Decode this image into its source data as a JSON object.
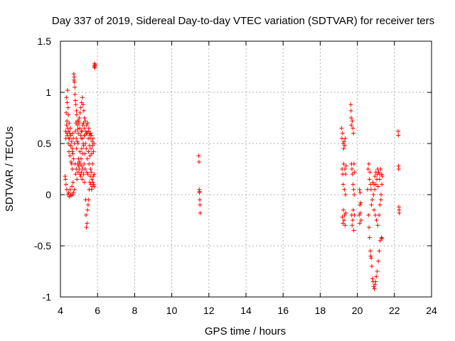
{
  "chart_data": {
    "type": "scatter",
    "title": "Day 337 of 2019, Sidereal Day-to-day VTEC variation (SDTVAR) for receiver ters",
    "xlabel": "GPS time / hours",
    "ylabel": "SDTVAR / TECUs",
    "xlim": [
      4,
      24
    ],
    "ylim": [
      -1,
      1.5
    ],
    "xticks": [
      4,
      6,
      8,
      10,
      12,
      14,
      16,
      18,
      20,
      22,
      24
    ],
    "yticks": [
      -1,
      -0.5,
      0,
      0.5,
      1,
      1.5
    ],
    "xtick_labels": [
      "4",
      "6",
      "8",
      "10",
      "12",
      "14",
      "16",
      "18",
      "20",
      "22",
      "24"
    ],
    "ytick_labels": [
      "-1",
      "-0.5",
      "0",
      "0.5",
      "1",
      "1.5"
    ],
    "grid": true,
    "marker": "+",
    "color": "#ff0000",
    "series": [
      {
        "name": "SDTVAR",
        "points": [
          [
            4.25,
            0.18
          ],
          [
            4.27,
            0.15
          ],
          [
            4.28,
            0.62
          ],
          [
            4.29,
            0.55
          ],
          [
            4.3,
            0.1
          ],
          [
            4.31,
            0.8
          ],
          [
            4.32,
            0.95
          ],
          [
            4.33,
            0.68
          ],
          [
            4.34,
            0.05
          ],
          [
            4.35,
            0.72
          ],
          [
            4.36,
            0.9
          ],
          [
            4.37,
            0.58
          ],
          [
            4.38,
            1.02
          ],
          [
            4.39,
            0.65
          ],
          [
            4.4,
            0.0
          ],
          [
            4.41,
            0.85
          ],
          [
            4.42,
            0.5
          ],
          [
            4.43,
            0.78
          ],
          [
            4.44,
            0.02
          ],
          [
            4.45,
            0.62
          ],
          [
            4.46,
            0.42
          ],
          [
            4.47,
            0.7
          ],
          [
            4.48,
            -0.02
          ],
          [
            4.49,
            0.55
          ],
          [
            4.5,
            0.6
          ],
          [
            4.51,
            0.38
          ],
          [
            4.52,
            0.05
          ],
          [
            4.53,
            0.65
          ],
          [
            4.54,
            0.48
          ],
          [
            4.55,
            0.0
          ],
          [
            4.56,
            0.58
          ],
          [
            4.57,
            0.32
          ],
          [
            4.58,
            -0.01
          ],
          [
            4.6,
            0.52
          ],
          [
            4.61,
            0.3
          ],
          [
            4.62,
            0.08
          ],
          [
            4.63,
            0.45
          ],
          [
            4.64,
            0.25
          ],
          [
            4.65,
            0.0
          ],
          [
            4.66,
            0.6
          ],
          [
            4.67,
            0.4
          ],
          [
            4.68,
            0.12
          ],
          [
            4.69,
            0.55
          ],
          [
            4.7,
            0.02
          ],
          [
            4.71,
            0.35
          ],
          [
            4.72,
            1.18
          ],
          [
            4.73,
            1.12
          ],
          [
            4.74,
            1.15
          ],
          [
            4.75,
            1.1
          ],
          [
            4.76,
            0.05
          ],
          [
            4.77,
            1.05
          ],
          [
            4.78,
            0.98
          ],
          [
            4.79,
            0.3
          ],
          [
            4.8,
            0.92
          ],
          [
            4.81,
            0.62
          ],
          [
            4.82,
            0.2
          ],
          [
            4.83,
            0.88
          ],
          [
            4.84,
            0.7
          ],
          [
            4.85,
            0.25
          ],
          [
            4.86,
            0.82
          ],
          [
            4.87,
            0.45
          ],
          [
            4.88,
            0.78
          ],
          [
            4.89,
            0.15
          ],
          [
            4.9,
            0.72
          ],
          [
            4.91,
            0.52
          ],
          [
            4.92,
            0.68
          ],
          [
            4.93,
            0.3
          ],
          [
            4.94,
            0.64
          ],
          [
            4.95,
            0.22
          ],
          [
            4.96,
            0.6
          ],
          [
            4.97,
            0.35
          ],
          [
            4.98,
            0.72
          ],
          [
            4.99,
            0.28
          ],
          [
            5.0,
            0.7
          ],
          [
            5.01,
            0.32
          ],
          [
            5.02,
            0.75
          ],
          [
            5.03,
            0.25
          ],
          [
            5.04,
            0.65
          ],
          [
            5.05,
            0.2
          ],
          [
            5.06,
            0.8
          ],
          [
            5.07,
            0.3
          ],
          [
            5.08,
            0.58
          ],
          [
            5.09,
            0.18
          ],
          [
            5.1,
            0.85
          ],
          [
            5.11,
            0.35
          ],
          [
            5.12,
            0.55
          ],
          [
            5.13,
            0.22
          ],
          [
            5.14,
            0.9
          ],
          [
            5.15,
            0.28
          ],
          [
            5.16,
            0.62
          ],
          [
            5.17,
            0.15
          ],
          [
            5.18,
            0.95
          ],
          [
            5.19,
            0.4
          ],
          [
            5.2,
            0.68
          ],
          [
            5.21,
            0.25
          ],
          [
            5.22,
            0.88
          ],
          [
            5.23,
            0.5
          ],
          [
            5.24,
            0.7
          ],
          [
            5.25,
            0.2
          ],
          [
            5.26,
            0.82
          ],
          [
            5.27,
            0.3
          ],
          [
            5.28,
            0.65
          ],
          [
            5.29,
            0.12
          ],
          [
            5.3,
            0.75
          ],
          [
            5.31,
            0.4
          ],
          [
            5.32,
            0.58
          ],
          [
            5.33,
            0.25
          ],
          [
            5.34,
            0.72
          ],
          [
            5.35,
            0.5
          ],
          [
            5.36,
            -0.05
          ],
          [
            5.37,
            0.62
          ],
          [
            5.38,
            -0.2
          ],
          [
            5.39,
            0.45
          ],
          [
            5.4,
            -0.32
          ],
          [
            5.41,
            0.68
          ],
          [
            5.42,
            0.22
          ],
          [
            5.43,
            -0.28
          ],
          [
            5.44,
            0.6
          ],
          [
            5.45,
            0.35
          ],
          [
            5.46,
            -0.15
          ],
          [
            5.47,
            0.7
          ],
          [
            5.48,
            0.2
          ],
          [
            5.49,
            -0.1
          ],
          [
            5.5,
            0.55
          ],
          [
            5.51,
            0.42
          ],
          [
            5.52,
            -0.05
          ],
          [
            5.53,
            0.65
          ],
          [
            5.54,
            0.3
          ],
          [
            5.55,
            0.05
          ],
          [
            5.56,
            0.6
          ],
          [
            5.57,
            0.48
          ],
          [
            5.58,
            0.12
          ],
          [
            5.59,
            0.38
          ],
          [
            5.6,
            0.55
          ],
          [
            5.61,
            0.18
          ],
          [
            5.62,
            0.25
          ],
          [
            5.63,
            0.6
          ],
          [
            5.64,
            0.1
          ],
          [
            5.65,
            0.45
          ],
          [
            5.66,
            0.22
          ],
          [
            5.67,
            0.58
          ],
          [
            5.68,
            0.05
          ],
          [
            5.69,
            0.4
          ],
          [
            5.7,
            0.15
          ],
          [
            5.71,
            0.52
          ],
          [
            5.72,
            0.08
          ],
          [
            5.73,
            0.3
          ],
          [
            5.74,
            0.48
          ],
          [
            5.75,
            0.12
          ],
          [
            5.76,
            0.55
          ],
          [
            5.77,
            0.18
          ],
          [
            5.78,
            0.42
          ],
          [
            5.79,
            0.1
          ],
          [
            5.8,
            0.5
          ],
          [
            5.81,
            0.2
          ],
          [
            5.82,
            0.08
          ],
          [
            5.83,
            1.25
          ],
          [
            5.84,
            1.28
          ],
          [
            5.85,
            1.26
          ],
          [
            5.86,
            1.24
          ],
          [
            5.87,
            1.27
          ],
          [
            5.12,
            0.62
          ],
          [
            5.2,
            0.55
          ],
          [
            5.3,
            0.58
          ],
          [
            5.4,
            0.6
          ],
          [
            5.5,
            0.62
          ],
          [
            5.6,
            0.58
          ],
          [
            5.05,
            0.42
          ],
          [
            5.15,
            0.45
          ],
          [
            5.25,
            0.48
          ],
          [
            4.35,
            0.6
          ],
          [
            4.45,
            0.55
          ],
          [
            4.55,
            0.48
          ],
          [
            4.65,
            0.42
          ],
          [
            4.75,
            0.5
          ],
          [
            4.85,
            0.55
          ],
          [
            4.95,
            0.5
          ],
          [
            11.45,
            0.38
          ],
          [
            11.47,
            0.32
          ],
          [
            11.48,
            0.05
          ],
          [
            11.5,
            0.03
          ],
          [
            11.51,
            -0.05
          ],
          [
            11.52,
            -0.1
          ],
          [
            11.53,
            -0.18
          ],
          [
            11.49,
            0.02
          ],
          [
            19.15,
            0.65
          ],
          [
            19.17,
            0.55
          ],
          [
            19.18,
            0.25
          ],
          [
            19.19,
            -0.22
          ],
          [
            19.2,
            0.6
          ],
          [
            19.21,
            0.2
          ],
          [
            19.22,
            -0.28
          ],
          [
            19.23,
            0.5
          ],
          [
            19.24,
            0.1
          ],
          [
            19.25,
            -0.15
          ],
          [
            19.26,
            0.45
          ],
          [
            19.27,
            0.3
          ],
          [
            19.28,
            -0.25
          ],
          [
            19.29,
            0.52
          ],
          [
            19.3,
            0.05
          ],
          [
            19.31,
            -0.2
          ],
          [
            19.32,
            0.48
          ],
          [
            19.33,
            0.25
          ],
          [
            19.34,
            -0.3
          ],
          [
            19.35,
            0.55
          ],
          [
            19.36,
            0.0
          ],
          [
            19.37,
            0.2
          ],
          [
            19.38,
            -0.18
          ],
          [
            19.4,
            0.28
          ],
          [
            19.65,
            0.88
          ],
          [
            19.66,
            0.82
          ],
          [
            19.67,
            0.75
          ],
          [
            19.68,
            0.68
          ],
          [
            19.69,
            0.3
          ],
          [
            19.7,
            -0.2
          ],
          [
            19.71,
            0.25
          ],
          [
            19.72,
            -0.3
          ],
          [
            19.73,
            0.72
          ],
          [
            19.74,
            0.2
          ],
          [
            19.75,
            -0.25
          ],
          [
            19.76,
            0.65
          ],
          [
            19.77,
            0.1
          ],
          [
            19.78,
            -0.15
          ],
          [
            19.79,
            0.6
          ],
          [
            19.8,
            0.05
          ],
          [
            19.81,
            -0.35
          ],
          [
            19.82,
            0.3
          ],
          [
            19.83,
            0.0
          ],
          [
            19.84,
            -0.2
          ],
          [
            19.85,
            0.22
          ],
          [
            20.1,
            -0.2
          ],
          [
            20.12,
            0.05
          ],
          [
            20.13,
            -0.28
          ],
          [
            20.14,
            -0.1
          ],
          [
            20.15,
            0.02
          ],
          [
            20.16,
            -0.18
          ],
          [
            20.18,
            -0.08
          ],
          [
            20.2,
            -0.25
          ],
          [
            20.55,
            0.05
          ],
          [
            20.58,
            0.25
          ],
          [
            20.6,
            -0.2
          ],
          [
            20.62,
            0.3
          ],
          [
            20.63,
            -0.32
          ],
          [
            20.65,
            0.15
          ],
          [
            20.66,
            -0.42
          ],
          [
            20.68,
            0.22
          ],
          [
            20.7,
            -0.55
          ],
          [
            20.71,
            0.1
          ],
          [
            20.72,
            -0.6
          ],
          [
            20.74,
            0.05
          ],
          [
            20.75,
            -0.62
          ],
          [
            20.76,
            -0.1
          ],
          [
            20.78,
            -0.7
          ],
          [
            20.8,
            -0.05
          ],
          [
            20.82,
            -0.82
          ],
          [
            20.84,
            0.12
          ],
          [
            20.85,
            -0.85
          ],
          [
            20.87,
            0.0
          ],
          [
            20.88,
            -0.9
          ],
          [
            20.9,
            -0.15
          ],
          [
            20.92,
            -0.92
          ],
          [
            20.94,
            0.05
          ],
          [
            20.95,
            -0.88
          ],
          [
            20.97,
            -0.2
          ],
          [
            20.98,
            -0.85
          ],
          [
            21.0,
            0.1
          ],
          [
            21.02,
            -0.8
          ],
          [
            21.03,
            -0.25
          ],
          [
            21.05,
            0.15
          ],
          [
            21.07,
            -0.75
          ],
          [
            21.08,
            0.2
          ],
          [
            21.1,
            -0.3
          ],
          [
            21.12,
            0.08
          ],
          [
            21.13,
            -0.65
          ],
          [
            21.15,
            0.22
          ],
          [
            21.17,
            -0.2
          ],
          [
            21.18,
            -0.55
          ],
          [
            21.2,
            0.15
          ],
          [
            21.22,
            -0.1
          ],
          [
            21.23,
            -0.45
          ],
          [
            21.25,
            0.25
          ],
          [
            21.27,
            -0.05
          ],
          [
            21.28,
            0.0
          ],
          [
            21.3,
            -0.42
          ],
          [
            21.31,
            0.2
          ],
          [
            21.32,
            0.1
          ],
          [
            21.33,
            -0.43
          ],
          [
            21.34,
            0.18
          ],
          [
            20.95,
            0.18
          ],
          [
            21.0,
            0.22
          ],
          [
            21.1,
            0.25
          ],
          [
            20.9,
            0.1
          ],
          [
            21.2,
            0.2
          ],
          [
            22.2,
            0.62
          ],
          [
            22.21,
            0.58
          ],
          [
            22.22,
            0.28
          ],
          [
            22.23,
            0.25
          ],
          [
            22.24,
            -0.12
          ],
          [
            22.25,
            -0.15
          ],
          [
            22.26,
            -0.18
          ]
        ]
      }
    ]
  }
}
